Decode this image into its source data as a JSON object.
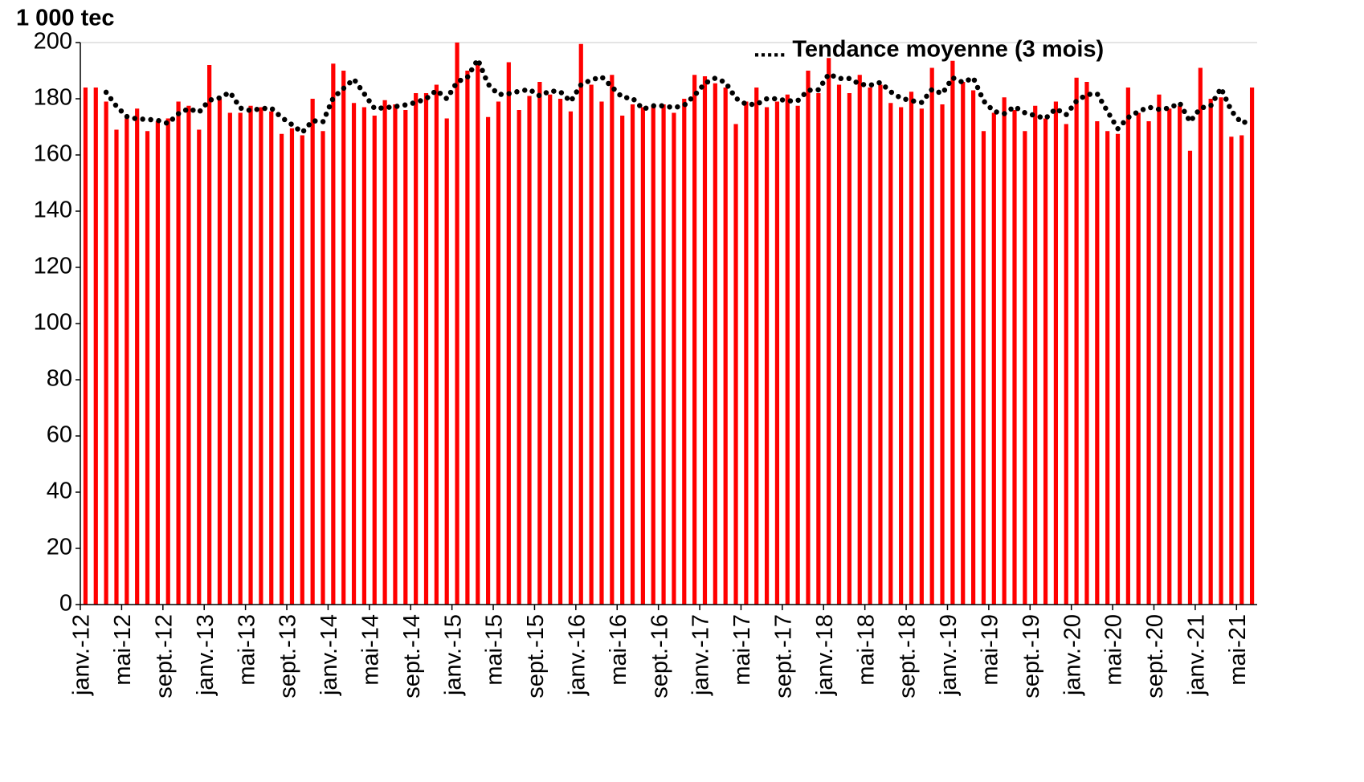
{
  "chart_data": {
    "type": "bar",
    "y_axis_label": "1 000 tec",
    "categories": [
      "janv.-12",
      null,
      null,
      null,
      "mai-12",
      null,
      null,
      null,
      "sept.-12",
      null,
      null,
      null,
      "janv.-13",
      null,
      null,
      null,
      "mai-13",
      null,
      null,
      null,
      "sept.-13",
      null,
      null,
      null,
      "janv.-14",
      null,
      null,
      null,
      "mai-14",
      null,
      null,
      null,
      "sept.-14",
      null,
      null,
      null,
      "janv.-15",
      null,
      null,
      null,
      "mai-15",
      null,
      null,
      null,
      "sept.-15",
      null,
      null,
      null,
      "janv.-16",
      null,
      null,
      null,
      "mai-16",
      null,
      null,
      null,
      "sept.-16",
      null,
      null,
      null,
      "janv.-17",
      null,
      null,
      null,
      "mai-17",
      null,
      null,
      null,
      "sept.-17",
      null,
      null,
      null,
      "janv.-18",
      null,
      null,
      null,
      "mai-18",
      null,
      null,
      null,
      "sept.-18",
      null,
      null,
      null,
      "janv.-19",
      null,
      null,
      null,
      "mai-19",
      null,
      null,
      null,
      "sept.-19",
      null,
      null,
      null,
      "janv.-20",
      null,
      null,
      null,
      "mai-20",
      null,
      null,
      null,
      "sept.-20",
      null,
      null,
      null,
      "janv.-21",
      null,
      null,
      null,
      "mai-21",
      null
    ],
    "series": [
      {
        "color": "#ff0000",
        "values": [
          184,
          184,
          179,
          169,
          173,
          176.5,
          168.5,
          172,
          173,
          179,
          177.5,
          169,
          192,
          180,
          175,
          175,
          177.5,
          177,
          175.5,
          167.5,
          169.5,
          167,
          180,
          168.5,
          192.5,
          190,
          178.5,
          177,
          174,
          179.5,
          178,
          176,
          182,
          182,
          185,
          173,
          200,
          190,
          192,
          173.5,
          179,
          193,
          176,
          181,
          186,
          181.5,
          180,
          175.5,
          199.5,
          185,
          179,
          188.5,
          174,
          178,
          177,
          177.5,
          178,
          175,
          180,
          188.5,
          188,
          185.5,
          184,
          171,
          179,
          184,
          177,
          179,
          181.5,
          177.5,
          190,
          182,
          194.5,
          185,
          182,
          188.5,
          184,
          185,
          178.5,
          177,
          182.5,
          176.5,
          191,
          178,
          193.5,
          186,
          183,
          168.5,
          175,
          180.5,
          176,
          168.5,
          177.5,
          173,
          179,
          171,
          187.5,
          186,
          172,
          168.5,
          167.5,
          184,
          175,
          172,
          181.5,
          176.5,
          177.5,
          161.5,
          191,
          180,
          180.5,
          166.5,
          167,
          184
        ]
      },
      {
        "name": "..... Tendance moyenne (3 mois)",
        "type": "line",
        "color": "#000000",
        "values": [
          null,
          null,
          182.3,
          177.3,
          173.7,
          172.8,
          172.7,
          172.3,
          171.2,
          174.7,
          176.5,
          175.2,
          179.5,
          180.3,
          182.3,
          176.7,
          175.8,
          176.5,
          176.7,
          173.3,
          170.8,
          168,
          172.2,
          171.8,
          180.3,
          183.7,
          187,
          181.8,
          176.5,
          176.8,
          177.2,
          177.8,
          178.7,
          180,
          183,
          180,
          186,
          187.7,
          194,
          185.2,
          181.5,
          181.8,
          182.7,
          183.3,
          181,
          182.8,
          182.5,
          179,
          185,
          186.7,
          187.8,
          184.2,
          180.5,
          180.2,
          176.3,
          177.5,
          177.5,
          176.8,
          177.7,
          181.2,
          185.5,
          187.3,
          185.8,
          180.2,
          178,
          178,
          180,
          180,
          179.2,
          179.3,
          183,
          183.2,
          188.8,
          187.2,
          187.2,
          185.2,
          184.8,
          185.8,
          182.5,
          180.2,
          179.3,
          178.7,
          183.3,
          181.8,
          187.5,
          185.8,
          187.5,
          179.2,
          175.5,
          174.7,
          177.2,
          175,
          174,
          173,
          176.5,
          174.3,
          179.2,
          181.5,
          181.8,
          175.5,
          169.3,
          173.3,
          175.5,
          177,
          176.2,
          176.7,
          178.5,
          171.8,
          176.7,
          177.5,
          183.8,
          175.7,
          171.3,
          172.5
        ]
      }
    ],
    "ylim": [
      0,
      200
    ],
    "yticks": [
      0,
      20,
      40,
      60,
      80,
      100,
      120,
      140,
      160,
      180,
      200
    ],
    "grid": false
  }
}
